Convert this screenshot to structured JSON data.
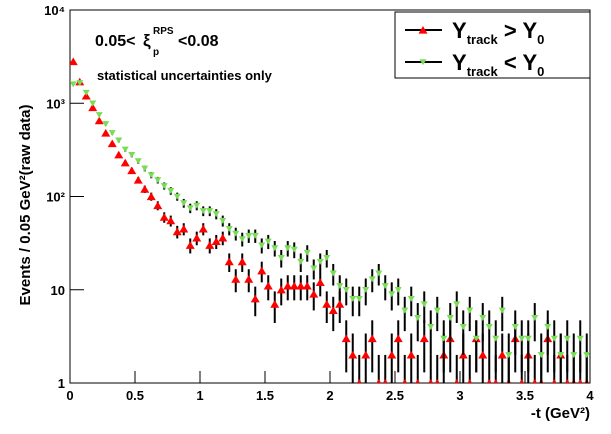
{
  "chart_data": {
    "type": "scatter",
    "log_y": true,
    "annotation": {
      "cut_lo": "0.05<",
      "xi": "ξ",
      "xi_sub": "p",
      "xi_sup": "RPS",
      "cut_hi": "<0.08",
      "note": "statistical uncertainties only"
    },
    "x_label": "-t (GeV²)",
    "y_label": "Events / 0.05 GeV²(raw data)",
    "xlim": [
      0,
      4
    ],
    "ylim": [
      1,
      10000
    ],
    "xticks": [
      0,
      0.5,
      1,
      1.5,
      2,
      2.5,
      3,
      3.5,
      4
    ],
    "yticks": [
      1,
      10,
      {
        "value": 100,
        "label": "10²"
      },
      {
        "value": 1000,
        "label": "10³"
      },
      {
        "value": 10000,
        "label": "10⁴"
      }
    ],
    "x": [
      0.025,
      0.075,
      0.125,
      0.175,
      0.225,
      0.275,
      0.325,
      0.375,
      0.425,
      0.475,
      0.525,
      0.575,
      0.625,
      0.675,
      0.725,
      0.775,
      0.825,
      0.875,
      0.925,
      0.975,
      1.025,
      1.075,
      1.125,
      1.175,
      1.225,
      1.275,
      1.325,
      1.375,
      1.425,
      1.475,
      1.525,
      1.575,
      1.625,
      1.675,
      1.725,
      1.775,
      1.825,
      1.875,
      1.925,
      1.975,
      2.025,
      2.075,
      2.125,
      2.175,
      2.225,
      2.275,
      2.325,
      2.375,
      2.425,
      2.475,
      2.525,
      2.575,
      2.625,
      2.675,
      2.725,
      2.775,
      2.825,
      2.875,
      2.925,
      2.975,
      3.025,
      3.075,
      3.125,
      3.175,
      3.225,
      3.275,
      3.325,
      3.375,
      3.425,
      3.475,
      3.525,
      3.575,
      3.625,
      3.675,
      3.725,
      3.775,
      3.825,
      3.875,
      3.925,
      3.975
    ],
    "series": [
      {
        "name": [
          "Y",
          "track",
          " > Y",
          "0"
        ],
        "color": "#ff0000",
        "marker": "triangle-up",
        "values": [
          2800,
          1700,
          1200,
          900,
          650,
          480,
          370,
          280,
          230,
          190,
          150,
          120,
          100,
          80,
          60,
          55,
          42,
          45,
          30,
          36,
          45,
          30,
          33,
          36,
          20,
          13,
          20,
          13,
          8,
          16,
          11,
          7,
          10,
          11,
          11,
          11,
          11,
          9,
          12,
          7,
          6,
          7,
          3,
          2,
          1,
          2,
          3,
          1,
          1,
          2,
          3,
          1,
          2,
          1,
          3,
          1,
          1,
          2,
          3,
          1,
          2,
          1,
          3,
          2,
          1,
          1,
          2,
          1,
          3,
          1,
          2,
          1,
          1,
          3,
          1,
          2,
          1,
          1,
          1,
          1
        ],
        "errors": [
          52.9,
          41.2,
          34.6,
          30,
          25.5,
          21.9,
          19.2,
          16.7,
          15.2,
          13.8,
          12.2,
          11,
          10,
          8.9,
          7.7,
          7.4,
          6.5,
          6.7,
          5.5,
          6,
          6.7,
          5.5,
          5.7,
          6,
          4.5,
          3.6,
          4.5,
          3.6,
          2.8,
          4,
          3.3,
          2.6,
          3.2,
          3.3,
          3.3,
          3.3,
          3.3,
          3,
          3.5,
          2.6,
          2.4,
          2.6,
          1.7,
          1.4,
          1,
          1.4,
          1.7,
          1,
          1,
          1.4,
          1.7,
          1,
          1.4,
          1,
          1.7,
          1,
          1,
          1.4,
          1.7,
          1,
          1.4,
          1,
          1.7,
          1.4,
          1,
          1,
          1.4,
          1,
          1.7,
          1,
          1.4,
          1,
          1,
          1.7,
          1,
          1.4,
          1,
          1,
          1,
          1
        ]
      },
      {
        "name": [
          "Y",
          "track",
          " < Y",
          "0"
        ],
        "color": "#77dd55",
        "marker": "triangle-down",
        "values": [
          1600,
          1650,
          1300,
          1000,
          750,
          600,
          480,
          400,
          320,
          280,
          240,
          200,
          170,
          150,
          130,
          115,
          100,
          85,
          75,
          80,
          70,
          70,
          65,
          55,
          45,
          40,
          35,
          38,
          38,
          30,
          33,
          28,
          22,
          28,
          27,
          20,
          25,
          17,
          20,
          22,
          15,
          11,
          10,
          8,
          8,
          10,
          13,
          15,
          11,
          9,
          10,
          6,
          8,
          5,
          7,
          4,
          6,
          3,
          5,
          7,
          4,
          6,
          3,
          5,
          4,
          3,
          6,
          2,
          4,
          3,
          3,
          5,
          2,
          4,
          3,
          2,
          3,
          2,
          3,
          2
        ],
        "errors": [
          40,
          40.6,
          36.1,
          31.6,
          27.4,
          24.5,
          21.9,
          20,
          17.9,
          16.7,
          15.5,
          14.1,
          13,
          12.2,
          11.4,
          10.7,
          10,
          9.2,
          8.7,
          8.9,
          8.4,
          8.4,
          8.1,
          7.4,
          6.7,
          6.3,
          5.9,
          6.2,
          6.2,
          5.5,
          5.7,
          5.3,
          4.7,
          5.3,
          5.2,
          4.5,
          5,
          4.1,
          4.5,
          4.7,
          3.9,
          3.3,
          3.2,
          2.8,
          2.8,
          3.2,
          3.6,
          3.9,
          3.3,
          3,
          3.2,
          2.4,
          2.8,
          2.2,
          2.6,
          2,
          2.4,
          1.7,
          2.2,
          2.6,
          2,
          2.4,
          1.7,
          2.2,
          2,
          1.7,
          2.4,
          1.4,
          2,
          1.7,
          1.7,
          2.2,
          1.4,
          2,
          1.7,
          1.4,
          1.7,
          1.4,
          1.7,
          1.4
        ]
      }
    ]
  }
}
